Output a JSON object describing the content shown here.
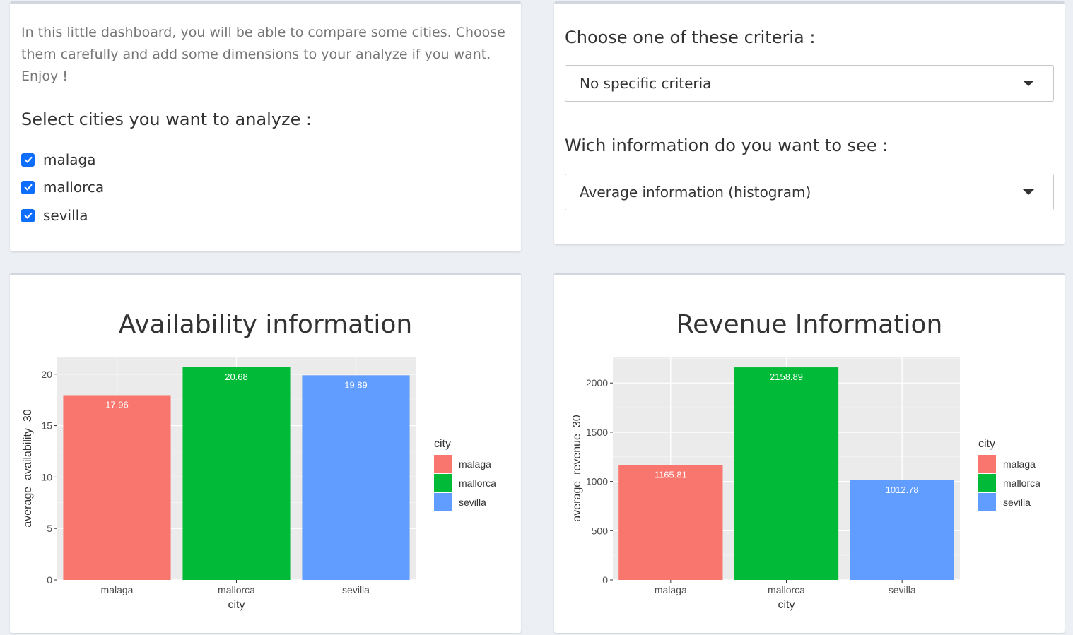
{
  "cities_panel": {
    "intro": "In this little dashboard, you will be able to compare some cities. Choose them carefully and add some dimensions to your analyze if you want. Enjoy !",
    "select_label": "Select cities you want to analyze :",
    "options": [
      {
        "label": "malaga",
        "checked": true
      },
      {
        "label": "mallorca",
        "checked": true
      },
      {
        "label": "sevilla",
        "checked": true
      }
    ]
  },
  "criteria_panel": {
    "criteria_label": "Choose one of these criteria :",
    "criteria_value": "No specific criteria",
    "info_label": "Wich information do you want to see :",
    "info_value": "Average information (histogram)"
  },
  "colors": {
    "malaga": "#f8766d",
    "mallorca": "#00ba38",
    "sevilla": "#619cff",
    "panel_bg": "#ebebeb",
    "checkbox": "#0d6efd"
  },
  "chart_data": [
    {
      "type": "bar",
      "title": "Availability information",
      "xlabel": "city",
      "ylabel": "average_availability_30",
      "categories": [
        "malaga",
        "mallorca",
        "sevilla"
      ],
      "values": [
        17.96,
        20.68,
        19.89
      ],
      "value_labels": [
        "17.96",
        "20.68",
        "19.89"
      ],
      "yticks": [
        "0",
        "5",
        "10",
        "15",
        "20"
      ],
      "ylim": [
        0,
        21.7
      ],
      "legend_title": "city",
      "legend": [
        "malaga",
        "mallorca",
        "sevilla"
      ],
      "legend_position": "right",
      "grid": true
    },
    {
      "type": "bar",
      "title": "Revenue Information",
      "xlabel": "city",
      "ylabel": "average_revenue_30",
      "categories": [
        "malaga",
        "mallorca",
        "sevilla"
      ],
      "values": [
        1165.81,
        2158.89,
        1012.78
      ],
      "value_labels": [
        "1165.81",
        "2158.89",
        "1012.78"
      ],
      "yticks": [
        "0",
        "500",
        "1000",
        "1500",
        "2000"
      ],
      "ylim": [
        0,
        2267
      ],
      "legend_title": "city",
      "legend": [
        "malaga",
        "mallorca",
        "sevilla"
      ],
      "legend_position": "right",
      "grid": true
    }
  ]
}
